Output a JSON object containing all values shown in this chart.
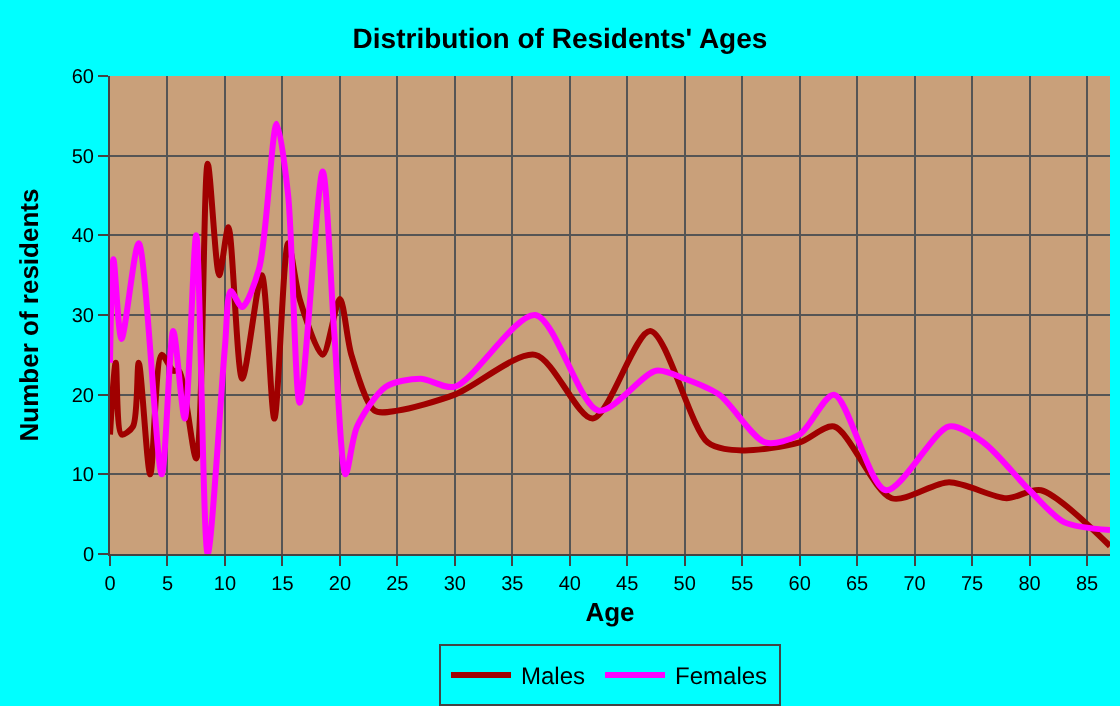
{
  "chart_data": {
    "type": "line",
    "title": "Distribution of Residents' Ages",
    "xlabel": "Age",
    "ylabel": "Number of residents",
    "xlim": [
      0,
      87
    ],
    "xticks": [
      0,
      5,
      10,
      15,
      20,
      25,
      30,
      35,
      40,
      45,
      50,
      55,
      60,
      65,
      70,
      75,
      80,
      85
    ],
    "ylim": [
      0,
      60
    ],
    "yticks": [
      0,
      10,
      20,
      30,
      40,
      50,
      60
    ],
    "grid": true,
    "legend": "bottom",
    "marker": "none",
    "line_style": "solid",
    "series": [
      {
        "name": "Males",
        "color": "#a00000",
        "x": [
          0,
          0.5,
          1,
          2,
          2.5,
          3.5,
          4.5,
          5.5,
          6,
          7.5,
          8.5,
          9.5,
          10.3,
          11.5,
          13.2,
          14.3,
          15.5,
          16.5,
          18.5,
          20,
          21,
          23,
          25,
          30,
          37,
          42,
          47,
          52,
          55,
          60,
          63,
          68,
          73,
          78,
          81,
          87
        ],
        "values": [
          15,
          24,
          15,
          16,
          24,
          10,
          25,
          23,
          23,
          12,
          49,
          35,
          41,
          22,
          35,
          17,
          39,
          32,
          25,
          32,
          25,
          18,
          18,
          20,
          25,
          17,
          28,
          14,
          13,
          14,
          16,
          7,
          9,
          7,
          8,
          1
        ]
      },
      {
        "name": "Females",
        "color": "#ff00ff",
        "x": [
          0,
          0.3,
          1,
          2.5,
          4.5,
          5.5,
          6.5,
          7.5,
          8.5,
          10,
          10.5,
          11.5,
          13,
          14.5,
          15.5,
          16.5,
          18.5,
          19.5,
          20.5,
          21.5,
          24,
          27,
          30,
          37,
          42.5,
          47.5,
          50,
          53,
          57,
          60,
          63,
          67.5,
          73,
          76,
          80,
          83,
          87
        ],
        "values": [
          24,
          37,
          27,
          39,
          10,
          28,
          17,
          40,
          0,
          26,
          33,
          31,
          36,
          54,
          45,
          19,
          48,
          28,
          10,
          16,
          21,
          22,
          21,
          30,
          18,
          23,
          22,
          20,
          14,
          15,
          20,
          8,
          16,
          14,
          8,
          4,
          3
        ]
      }
    ]
  }
}
